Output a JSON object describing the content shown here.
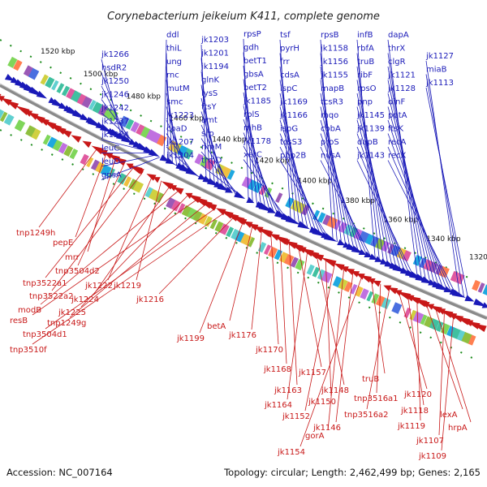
{
  "title": "Corynebacterium jeikeium K411, complete genome",
  "accession": "Accession: NC_007164",
  "summary": "Topology: circular; Length: 2,462,499 bp; Genes: 2,165",
  "kbp_markers": [
    "1520 kbp",
    "1500 kbp",
    "1480 kbp",
    "1460 kbp",
    "1440 kbp",
    "1420 kbp",
    "1400 kbp",
    "1380 kbp",
    "1360 kbp",
    "1340 kbp",
    "1320 kbp"
  ],
  "genes_forward": [
    "jk1266",
    "hsdR2",
    "jk1250",
    "jk1246",
    "jk1242",
    "jk1237",
    "jk1234",
    "leuC",
    "leuD",
    "gpsA",
    "ddl",
    "thiL",
    "ung",
    "rnc",
    "mutM",
    "smc",
    "jk1223",
    "coaD",
    "jk1207",
    "jk1204",
    "jk1203",
    "jk1201",
    "jk1194",
    "glnK",
    "lysS",
    "ftsY",
    "amt",
    "srp",
    "rimM",
    "trmD",
    "rpsP",
    "gdh",
    "betT1",
    "gbsA",
    "betT2",
    "jk1185",
    "rplS",
    "mhB",
    "jk1178",
    "xerC",
    "tsf",
    "pyrH",
    "frr",
    "cdsA",
    "ispC",
    "jk1169",
    "jk1166",
    "ispG",
    "tcsS3",
    "pbp2B",
    "rpsB",
    "jk1158",
    "jk1156",
    "jk1155",
    "mapB",
    "tcsR3",
    "mqo",
    "cobA",
    "proS",
    "nusA",
    "infB",
    "rbfA",
    "truB",
    "ribF",
    "rpsO",
    "pnp",
    "jk1145",
    "jk1139",
    "dapB",
    "jk1143",
    "dapA",
    "thrX",
    "clgR",
    "jk1121",
    "jk1128",
    "dinF",
    "pptA",
    "ftsK",
    "recA",
    "recX",
    "jk1127",
    "miaB",
    "jk1113"
  ],
  "genes_reverse": [
    "tnp1249h",
    "pepE",
    "mrr",
    "tnp3504d2",
    "tnp3522a1",
    "tnp3522a2",
    "jk1222",
    "jk1219",
    "jk1224",
    "modB",
    "jk1225",
    "resB",
    "tnp1249g",
    "tnp3504d1",
    "tnp3510f",
    "jk1216",
    "jk1199",
    "betA",
    "jk1176",
    "jk1170",
    "jk1168",
    "jk1163",
    "jk1157",
    "jk1164",
    "jk1148",
    "jk1150",
    "jk1152",
    "gorA",
    "jk1146",
    "jk1154",
    "truB",
    "tnp3516a1",
    "tnp3516a2",
    "jk1120",
    "jk1118",
    "jk1119",
    "lexA",
    "hrpA",
    "jk1107",
    "jk1109"
  ],
  "colors": {
    "forward": "#1a1ab8",
    "reverse": "#c81818",
    "backbone": "#8a8a8a",
    "tick": "#1a8a1a"
  }
}
